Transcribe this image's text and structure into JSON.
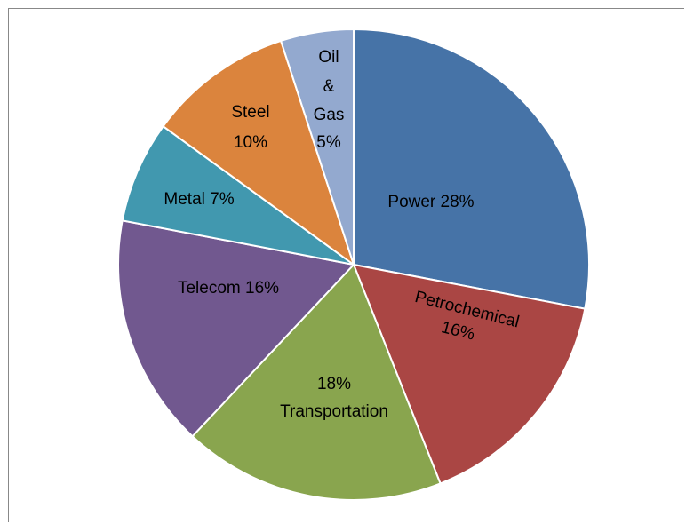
{
  "chart_data": {
    "type": "pie",
    "title": "",
    "slices": [
      {
        "name": "Power",
        "value": 28,
        "percent_label": "28%",
        "color": "#4673A7"
      },
      {
        "name": "Petrochemical",
        "value": 16,
        "percent_label": "16%",
        "color": "#AA4644"
      },
      {
        "name": "Transportation",
        "value": 18,
        "percent_label": "18%",
        "color": "#89A54E"
      },
      {
        "name": "Telecom",
        "value": 16,
        "percent_label": "16%",
        "color": "#71588F"
      },
      {
        "name": "Metal",
        "value": 7,
        "percent_label": "7%",
        "color": "#4198AF"
      },
      {
        "name": "Steel",
        "value": 10,
        "percent_label": "10%",
        "color": "#DB843D"
      },
      {
        "name": "Oil & Gas",
        "value": 5,
        "percent_label": "5%",
        "color": "#93A9CF"
      }
    ],
    "labels": {
      "power": "Power 28%",
      "petrochemical_1": "Petrochemical",
      "petrochemical_2": "16%",
      "transportation_1": "18%",
      "transportation_2": "Transportation",
      "telecom": "Telecom 16%",
      "metal": "Metal 7%",
      "steel_1": "Steel",
      "steel_2": "10%",
      "oil_1": "Oil",
      "oil_2": "&",
      "oil_3": "Gas",
      "oil_4": "5%"
    },
    "legend": "none",
    "start_angle": "12 o'clock",
    "direction": "clockwise"
  }
}
